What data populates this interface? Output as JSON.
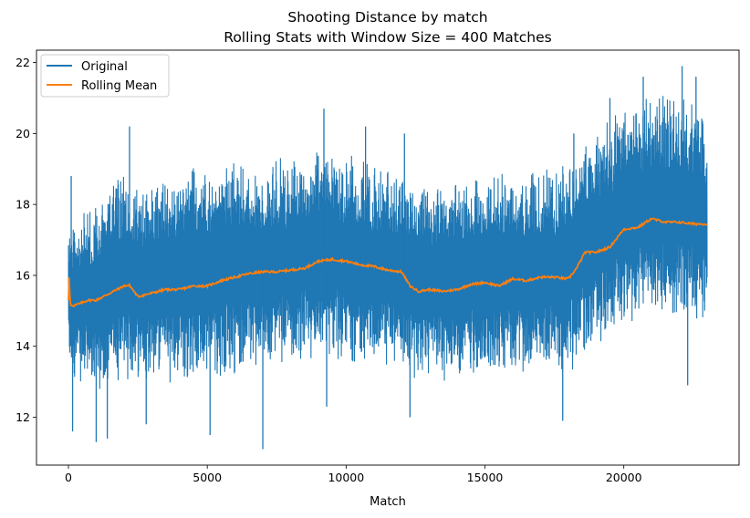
{
  "chart_data": {
    "type": "line",
    "title": "Shooting Distance by match",
    "subtitle": "Rolling Stats with Window Size = 400 Matches",
    "xlabel": "Match",
    "ylabel": "",
    "xlim": [
      -1150,
      24150
    ],
    "ylim": [
      10.65,
      22.35
    ],
    "x_ticks": [
      0,
      5000,
      10000,
      15000,
      20000
    ],
    "y_ticks": [
      12,
      14,
      16,
      18,
      20,
      22
    ],
    "grid": false,
    "legend_position": "top-left",
    "series": [
      {
        "name": "Original",
        "color": "#1f77b4",
        "n_points": 23000,
        "envelope_x": [
          0,
          500,
          1000,
          1500,
          2000,
          2500,
          3000,
          3500,
          4000,
          4500,
          5000,
          5500,
          6000,
          6500,
          7000,
          7500,
          8000,
          8500,
          9000,
          9500,
          10000,
          10500,
          11000,
          11500,
          12000,
          12500,
          13000,
          13500,
          14000,
          14500,
          15000,
          15500,
          16000,
          16500,
          17000,
          17500,
          18000,
          18500,
          19000,
          19500,
          20000,
          20500,
          21000,
          21500,
          22000,
          22500,
          23000
        ],
        "envelope_upper": [
          17.6,
          17.8,
          18.2,
          18.5,
          19.0,
          18.6,
          18.7,
          18.9,
          18.8,
          19.2,
          18.8,
          19.1,
          19.3,
          19.2,
          19.0,
          19.4,
          19.3,
          19.5,
          19.9,
          19.8,
          19.5,
          19.4,
          19.2,
          19.2,
          18.9,
          18.6,
          18.7,
          18.7,
          18.6,
          19.0,
          18.8,
          18.9,
          19.0,
          18.9,
          19.0,
          19.1,
          19.2,
          19.8,
          20.1,
          20.4,
          20.9,
          21.0,
          21.1,
          21.2,
          21.3,
          21.0,
          20.6
        ],
        "envelope_lower": [
          13.2,
          12.9,
          12.7,
          12.8,
          12.9,
          13.0,
          13.1,
          12.9,
          13.0,
          13.1,
          13.2,
          13.1,
          13.2,
          13.3,
          13.3,
          13.4,
          13.5,
          13.6,
          13.6,
          13.6,
          13.5,
          13.5,
          13.4,
          13.4,
          13.3,
          13.0,
          13.0,
          13.0,
          13.0,
          13.1,
          13.1,
          13.2,
          13.2,
          13.2,
          13.2,
          13.1,
          13.1,
          13.6,
          14.0,
          14.2,
          14.4,
          14.6,
          14.7,
          14.8,
          14.8,
          14.7,
          14.6
        ],
        "spikes_high": [
          {
            "x": 100,
            "y": 18.8
          },
          {
            "x": 2200,
            "y": 20.2
          },
          {
            "x": 9200,
            "y": 20.7
          },
          {
            "x": 10700,
            "y": 20.2
          },
          {
            "x": 12100,
            "y": 20.0
          },
          {
            "x": 18200,
            "y": 20.0
          },
          {
            "x": 19500,
            "y": 21.0
          },
          {
            "x": 20700,
            "y": 21.6
          },
          {
            "x": 22100,
            "y": 21.9
          },
          {
            "x": 22600,
            "y": 21.6
          }
        ],
        "spikes_low": [
          {
            "x": 150,
            "y": 11.6
          },
          {
            "x": 1000,
            "y": 11.3
          },
          {
            "x": 1400,
            "y": 11.4
          },
          {
            "x": 2800,
            "y": 11.8
          },
          {
            "x": 5100,
            "y": 11.5
          },
          {
            "x": 7000,
            "y": 11.1
          },
          {
            "x": 9300,
            "y": 12.3
          },
          {
            "x": 12300,
            "y": 12.0
          },
          {
            "x": 17800,
            "y": 11.9
          },
          {
            "x": 22300,
            "y": 12.9
          }
        ]
      },
      {
        "name": "Rolling Mean",
        "color": "#ff7f0e",
        "x": [
          0,
          30,
          60,
          100,
          200,
          400,
          700,
          1000,
          1500,
          2000,
          2200,
          2500,
          3000,
          3500,
          4000,
          4500,
          5000,
          5500,
          6000,
          6500,
          7000,
          7500,
          8000,
          8500,
          9000,
          9500,
          10000,
          10500,
          11000,
          11500,
          12000,
          12300,
          12600,
          13000,
          13500,
          14000,
          14500,
          15000,
          15500,
          16000,
          16500,
          17000,
          17500,
          18000,
          18300,
          18600,
          19000,
          19500,
          20000,
          20500,
          21000,
          21500,
          22000,
          22500,
          23000
        ],
        "y": [
          15.3,
          16.05,
          15.2,
          15.15,
          15.15,
          15.2,
          15.3,
          15.3,
          15.5,
          15.7,
          15.72,
          15.4,
          15.5,
          15.6,
          15.6,
          15.7,
          15.7,
          15.85,
          15.95,
          16.05,
          16.1,
          16.1,
          16.15,
          16.2,
          16.4,
          16.45,
          16.4,
          16.3,
          16.25,
          16.15,
          16.1,
          15.7,
          15.55,
          15.6,
          15.55,
          15.6,
          15.75,
          15.8,
          15.7,
          15.9,
          15.85,
          15.95,
          15.95,
          15.9,
          16.2,
          16.65,
          16.65,
          16.8,
          17.3,
          17.35,
          17.6,
          17.5,
          17.5,
          17.45,
          17.45
        ]
      }
    ]
  }
}
